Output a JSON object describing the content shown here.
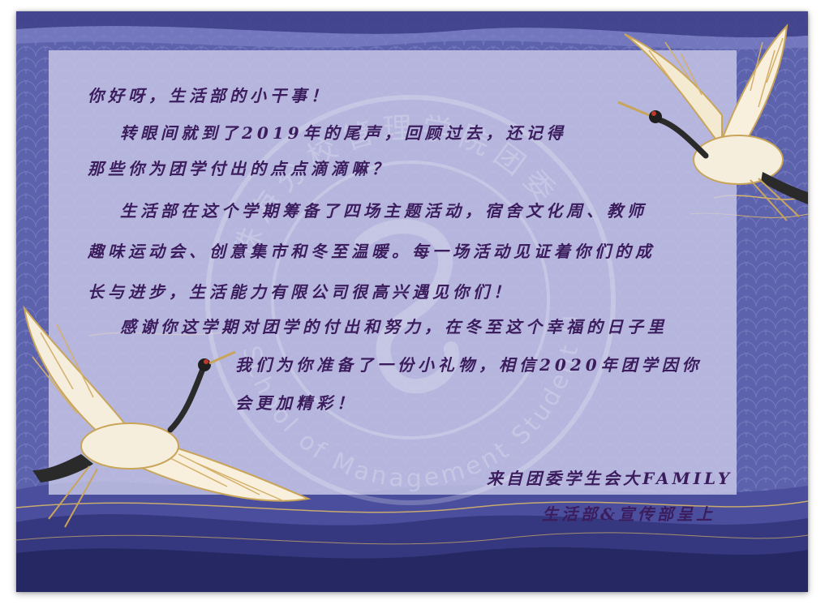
{
  "letter": {
    "greeting": "你好呀，生活部的小干事！",
    "p1_line1": "转眼间就到了2019年的尾声，回顾过去，还记得",
    "p1_line2": "那些你为团学付出的点点滴滴嘛？",
    "p2_line1": "生活部在这个学期筹备了四场主题活动，宿舍文化周、教师",
    "p2_line2": "趣味运动会、创意集市和冬至温暖。每一场活动见证着你们的成",
    "p2_line3": "长与进步，生活能力有限公司很高兴遇见你们！",
    "p3_line1": "感谢你这学期对团学的付出和努力，在冬至这个幸福的日子里",
    "p3_line2": "我们为你准备了一份小礼物，相信2020年团学因你",
    "p3_line3": "会更加精彩！"
  },
  "signature": {
    "from": "来自团委学生会大FAMILY",
    "dept": "生活部&宣传部呈上"
  },
  "watermark": {
    "cn_text": "珠海分校管理学院团委",
    "en_text": "School of Management Student Union"
  },
  "colors": {
    "text": "#3b1d5e",
    "wave_dark": "#2f2f72",
    "wave_mid": "#5a5fae",
    "panel": "#c8c8e8"
  }
}
